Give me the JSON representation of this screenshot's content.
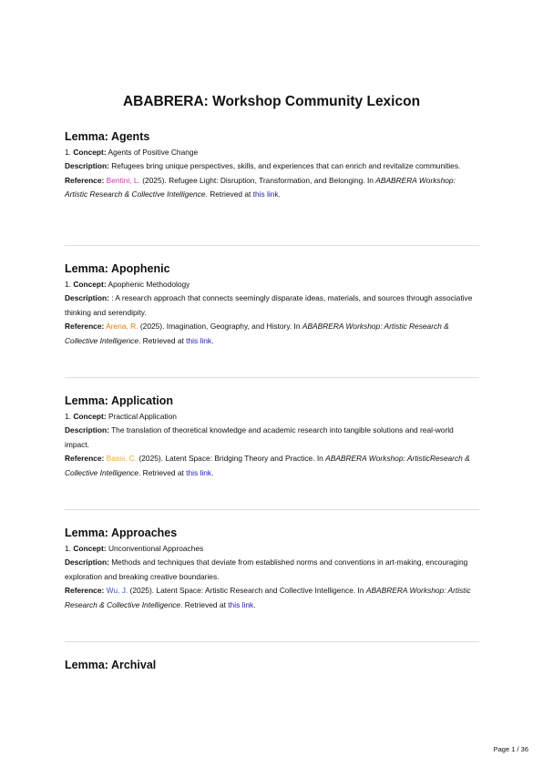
{
  "title": "ABABRERA: Workshop Community Lexicon",
  "labels": {
    "concept": "Concept:",
    "description": "Description:",
    "reference": "Reference:"
  },
  "entries": [
    {
      "heading": "Lemma: Agents",
      "number": "1.",
      "concept": "Agents of Positive Change",
      "description": "Refugees bring unique perspectives, skills, and experiences that can enrich and revitalize communities.",
      "reference": {
        "author": "Bentini, L.",
        "author_color": "#c43cb4",
        "text": " (2025). Refugee Light: Disruption, Transformation, and Belonging. In ",
        "source": "ABABRERA Workshop: Artistic Research & Collective Intelligence",
        "retrieved": ". Retrieved at ",
        "link": "this link",
        "end": "."
      }
    },
    {
      "heading": "Lemma: Apophenic",
      "number": "1.",
      "concept": "Apophenic Methodology",
      "description": ": A research approach that connects seemingly disparate ideas, materials, and sources through associative thinking and serendipity.",
      "reference": {
        "author": "Arena, R.",
        "author_color": "#e2780c",
        "text": " (2025). Imagination, Geography, and History. In ",
        "source": "ABABRERA Workshop: Artistic Research & Collective Intelligence",
        "retrieved": ". Retrieved at ",
        "link": "this link",
        "end": "."
      }
    },
    {
      "heading": "Lemma: Application",
      "number": "1.",
      "concept": "Practical Application",
      "description": "The translation of theoretical knowledge and academic research into tangible solutions and real-world impact.",
      "reference": {
        "author": "Bassi, C.",
        "author_color": "#f0a638",
        "text": " (2025). Latent Space: Bridging Theory and Practice. In ",
        "source": "ABABRERA Workshop: ArtisticResearch & Collective Intelligence",
        "retrieved": ". Retrieved at ",
        "link": "this link",
        "end": "."
      }
    },
    {
      "heading": "Lemma: Approaches",
      "number": "1.",
      "concept": "Unconventional Approaches",
      "description": "Methods and techniques that deviate from established norms and conventions in art-making, encouraging exploration and breaking creative boundaries.",
      "reference": {
        "author": "Wu, J.",
        "author_color": "#3f52c4",
        "text": " (2025). Latent Space: Artistic Research and Collective Intelligence. In ",
        "source": "ABABRERA Workshop: Artistic Research & Collective Intelligence",
        "retrieved": ". Retrieved at ",
        "link": "this link",
        "end": "."
      }
    },
    {
      "heading": "Lemma: Archival"
    }
  ],
  "footer": "Page 1 / 36"
}
